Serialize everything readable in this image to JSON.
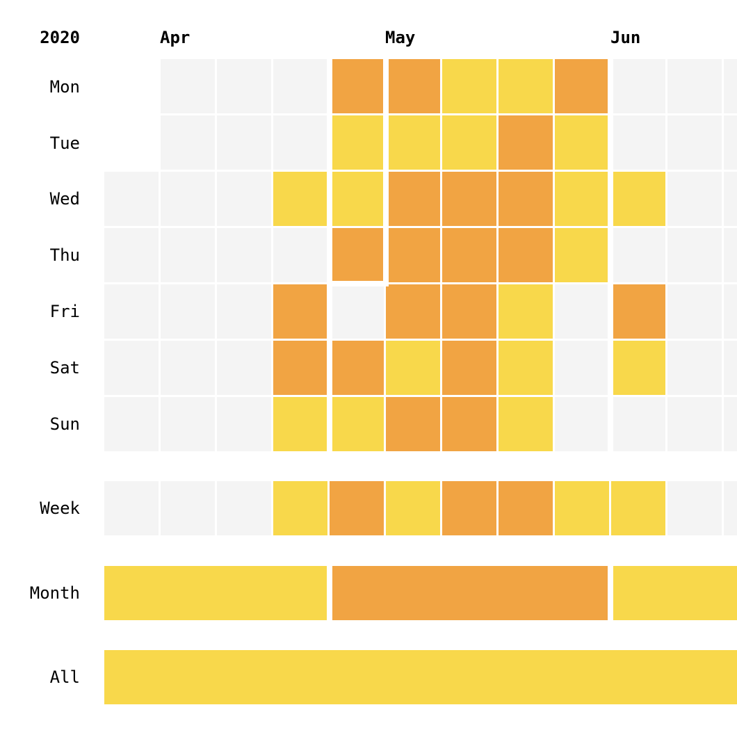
{
  "chart_data": {
    "type": "heatmap",
    "year": "2020",
    "month_labels": [
      "Apr",
      "May",
      "Jun"
    ],
    "day_labels": [
      "Mon",
      "Tue",
      "Wed",
      "Thu",
      "Fri",
      "Sat",
      "Sun"
    ],
    "summary_labels": {
      "week": "Week",
      "month": "Month",
      "all": "All"
    },
    "colors": {
      "empty": "#f4f4f4",
      "level1": "#f8d84b",
      "level2": "#f1a443"
    },
    "levels": {
      "empty": 0,
      "level1": 1,
      "level2": 2
    },
    "first_date": "2020-03-30",
    "weeks": 12,
    "days": [
      [
        null,
        0,
        0,
        0,
        2,
        2,
        1,
        1,
        2,
        0,
        0,
        0
      ],
      [
        null,
        0,
        0,
        0,
        1,
        1,
        1,
        2,
        1,
        0,
        0,
        0
      ],
      [
        0,
        0,
        0,
        1,
        1,
        2,
        2,
        2,
        1,
        1,
        0,
        0
      ],
      [
        0,
        0,
        0,
        0,
        2,
        2,
        2,
        2,
        1,
        0,
        0,
        0
      ],
      [
        0,
        0,
        0,
        2,
        0,
        2,
        2,
        1,
        0,
        2,
        0,
        0
      ],
      [
        0,
        0,
        0,
        2,
        2,
        1,
        2,
        1,
        0,
        1,
        0,
        0
      ],
      [
        0,
        0,
        0,
        1,
        1,
        2,
        2,
        1,
        0,
        0,
        0,
        0
      ]
    ],
    "week_values": [
      0,
      0,
      0,
      1,
      2,
      1,
      2,
      2,
      1,
      1,
      0,
      0
    ],
    "month_values": [
      {
        "month": "Apr",
        "value": 1
      },
      {
        "month": "May",
        "value": 2
      },
      {
        "month": "Jun",
        "value": 1
      }
    ],
    "all_value": 1
  }
}
